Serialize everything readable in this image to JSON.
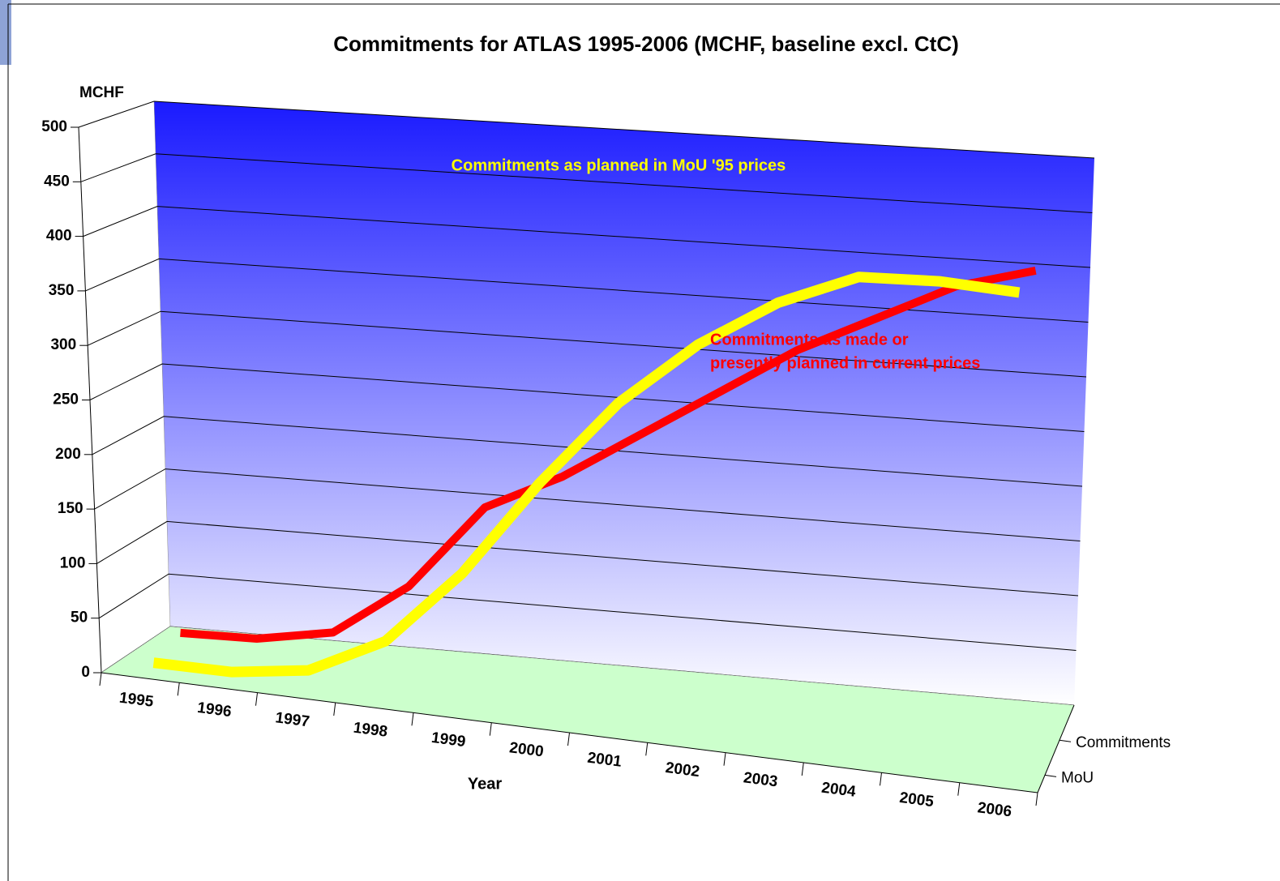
{
  "chart_data": {
    "type": "line3d",
    "title": "Commitments for ATLAS 1995-2006  (MCHF, baseline excl. CtC)",
    "y_label": "MCHF",
    "x_label": "Year",
    "categories": [
      "1995",
      "1996",
      "1997",
      "1998",
      "1999",
      "2000",
      "2001",
      "2002",
      "2003",
      "2004",
      "2005",
      "2006"
    ],
    "series": [
      {
        "name": "Commitments",
        "color": "#ff0000",
        "values": [
          15,
          17,
          30,
          80,
          160,
          195,
          240,
          285,
          330,
          365,
          400,
          420
        ]
      },
      {
        "name": "MoU",
        "color": "#ffff00",
        "values": [
          5,
          5,
          15,
          50,
          120,
          210,
          290,
          350,
          395,
          425,
          428,
          425
        ]
      }
    ],
    "ylim": [
      0,
      500
    ],
    "yticks": [
      0,
      50,
      100,
      150,
      200,
      250,
      300,
      350,
      400,
      450,
      500
    ],
    "grid": true,
    "annotations": [
      {
        "text": "Commitments as planned in MoU '95 prices",
        "color": "#ffff00"
      },
      {
        "lines": [
          "Commitments as made or",
          "presently planned in current prices"
        ],
        "color": "#ff0000"
      }
    ]
  }
}
